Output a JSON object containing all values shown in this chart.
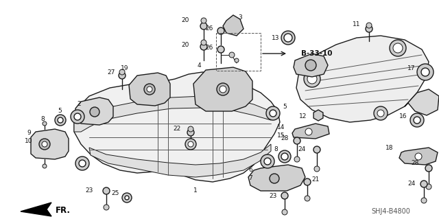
{
  "bg_color": "#ffffff",
  "fig_width": 6.4,
  "fig_height": 3.19,
  "dpi": 100,
  "diagram_code": "SHJ4-B4800",
  "ref_label": "B-33-10",
  "fr_label": "FR.",
  "lw_main": 1.0,
  "lw_med": 0.7,
  "lw_thin": 0.5,
  "color_dk": "#1a1a1a",
  "color_md": "#444444",
  "color_lt": "#888888"
}
